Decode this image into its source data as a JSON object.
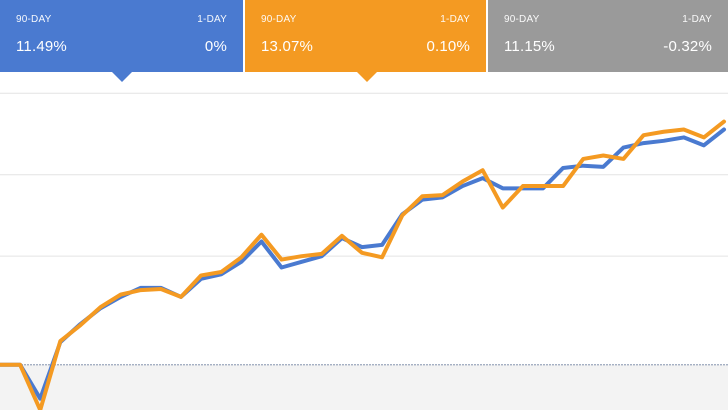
{
  "colors": {
    "blue": "#4a7ad0",
    "orange": "#f49a22",
    "gray": "#9a9a9a",
    "grid": "#e4e4e4",
    "baseline": "#9aa6bc",
    "below_baseline_fill": "#f3f3f3"
  },
  "tabs": [
    {
      "period_label": "90-DAY",
      "day_label": "1-DAY",
      "period_value": "11.49%",
      "day_value": "0%",
      "color": "#4a7ad0",
      "has_pointer": true
    },
    {
      "period_label": "90-DAY",
      "day_label": "1-DAY",
      "period_value": "13.07%",
      "day_value": "0.10%",
      "color": "#f49a22",
      "has_pointer": true
    },
    {
      "period_label": "90-DAY",
      "day_label": "1-DAY",
      "period_value": "11.15%",
      "day_value": "-0.32%",
      "color": "#9a9a9a",
      "has_pointer": false
    }
  ],
  "chart_data": {
    "type": "line",
    "x": [
      1,
      2,
      3,
      4,
      5,
      6,
      7,
      8,
      9,
      10,
      11,
      12,
      13,
      14,
      15,
      16,
      17,
      18,
      19,
      20,
      21,
      22,
      23,
      24,
      25,
      26,
      27,
      28,
      29,
      30,
      31,
      32,
      33,
      34,
      35,
      36,
      37
    ],
    "series": [
      {
        "color": "#4a7ad0",
        "values": [
          0,
          0,
          -3,
          2,
          3.6,
          5,
          6,
          6.8,
          6.8,
          6,
          7.6,
          8,
          9.1,
          10.9,
          8.6,
          9.1,
          9.6,
          11.2,
          10.4,
          10.6,
          13.3,
          14.6,
          14.8,
          15.8,
          16.5,
          15.6,
          15.6,
          15.6,
          17.4,
          17.6,
          17.5,
          19.2,
          19.6,
          19.8,
          20.1,
          19.4,
          20.8
        ],
        "final_return": 11.49
      },
      {
        "color": "#f49a22",
        "values": [
          0,
          0,
          -4,
          2.1,
          3.5,
          5.1,
          6.2,
          6.6,
          6.7,
          6,
          7.9,
          8.2,
          9.5,
          11.5,
          9.3,
          9.6,
          9.8,
          11.4,
          9.9,
          9.5,
          13.2,
          14.9,
          15,
          16.2,
          17.2,
          13.9,
          15.8,
          15.8,
          15.8,
          18.2,
          18.5,
          18.2,
          20.3,
          20.6,
          20.8,
          20.1,
          21.5
        ],
        "final_return": 13.07
      }
    ],
    "ylim": [
      -4,
      25
    ],
    "grid": true,
    "gridlines_y": [
      9.6,
      16.8,
      24
    ]
  }
}
